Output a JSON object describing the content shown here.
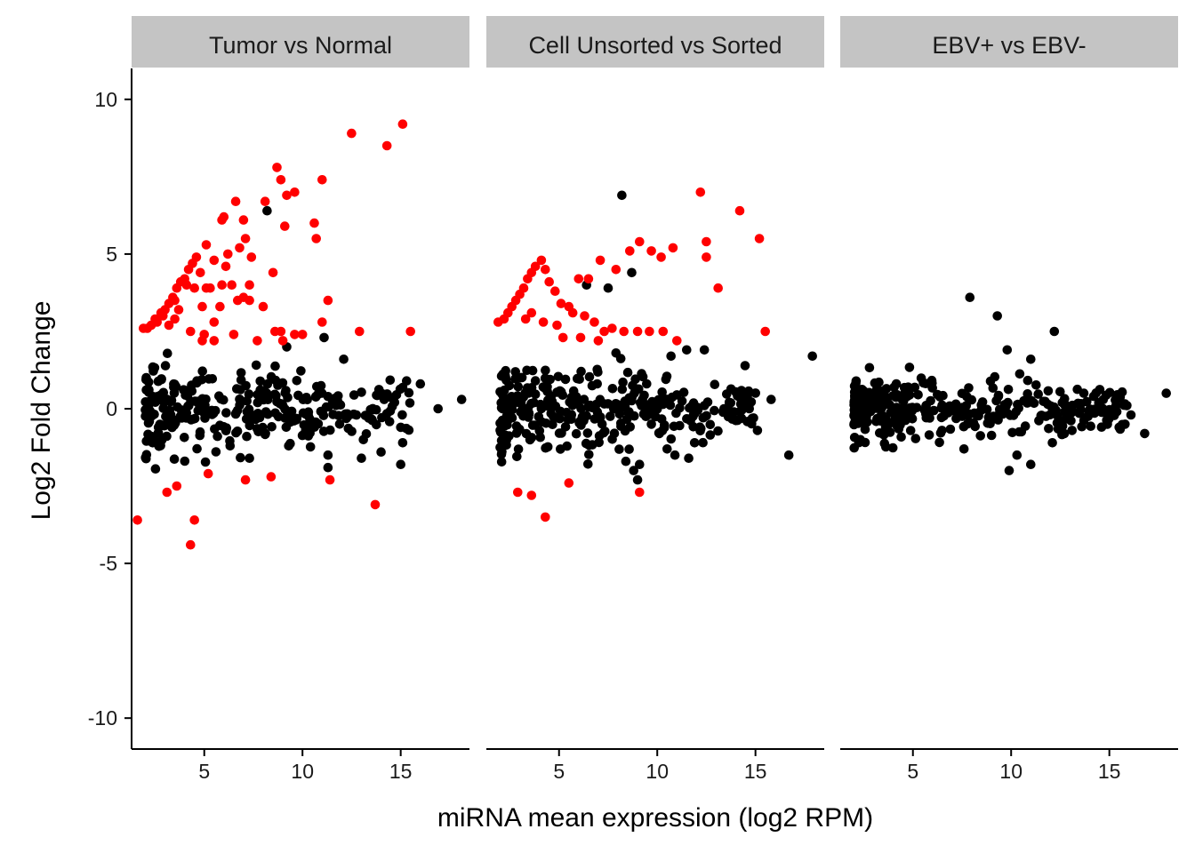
{
  "chart_data": {
    "type": "scatter",
    "xlabel": "miRNA mean expression (log2 RPM)",
    "ylabel": "Log2 Fold Change",
    "xlim": [
      1.3,
      18.5
    ],
    "ylim": [
      -11,
      11
    ],
    "xticks": [
      5,
      10,
      15
    ],
    "yticks": [
      10,
      5,
      0,
      -5,
      -10
    ],
    "x_tick_labels": [
      "5",
      "10",
      "15"
    ],
    "y_tick_labels": [
      "10",
      "5",
      "0",
      "-5",
      "-10"
    ],
    "grid": false,
    "legend": "none",
    "colors": {
      "significant": "#ff0000",
      "not_significant": "#000000",
      "strip_background": "#c4c4c4"
    },
    "panels": [
      {
        "title": "Tumor vs Normal",
        "significant_points": [
          [
            1.9,
            2.6
          ],
          [
            2.1,
            2.6
          ],
          [
            2.3,
            2.7
          ],
          [
            2.5,
            2.9
          ],
          [
            2.6,
            2.8
          ],
          [
            2.8,
            3.1
          ],
          [
            2.9,
            3.0
          ],
          [
            3.0,
            3.2
          ],
          [
            3.2,
            3.4
          ],
          [
            3.4,
            3.6
          ],
          [
            3.5,
            3.5
          ],
          [
            3.6,
            3.9
          ],
          [
            3.8,
            4.1
          ],
          [
            4.0,
            4.2
          ],
          [
            4.1,
            4.0
          ],
          [
            4.2,
            4.5
          ],
          [
            4.4,
            4.7
          ],
          [
            4.6,
            4.9
          ],
          [
            4.8,
            4.4
          ],
          [
            5.1,
            5.3
          ],
          [
            5.3,
            3.9
          ],
          [
            5.5,
            4.8
          ],
          [
            5.9,
            6.1
          ],
          [
            6.0,
            6.2
          ],
          [
            6.2,
            5.0
          ],
          [
            6.6,
            6.7
          ],
          [
            6.8,
            5.2
          ],
          [
            7.0,
            6.1
          ],
          [
            7.1,
            5.5
          ],
          [
            7.4,
            4.9
          ],
          [
            8.1,
            6.7
          ],
          [
            8.7,
            7.8
          ],
          [
            8.9,
            7.4
          ],
          [
            9.2,
            6.9
          ],
          [
            9.6,
            7.0
          ],
          [
            11.0,
            7.4
          ],
          [
            10.6,
            6.0
          ],
          [
            10.7,
            5.5
          ],
          [
            12.5,
            8.9
          ],
          [
            14.3,
            8.5
          ],
          [
            15.1,
            9.2
          ],
          [
            9.1,
            5.9
          ],
          [
            8.5,
            4.4
          ],
          [
            5.9,
            4.0
          ],
          [
            6.4,
            4.0
          ],
          [
            7.3,
            4.0
          ],
          [
            6.1,
            4.6
          ],
          [
            5.1,
            3.9
          ],
          [
            4.5,
            3.9
          ],
          [
            4.9,
            3.3
          ],
          [
            5.8,
            3.3
          ],
          [
            6.7,
            3.5
          ],
          [
            7.0,
            3.6
          ],
          [
            7.3,
            3.5
          ],
          [
            8.0,
            3.3
          ],
          [
            3.7,
            3.2
          ],
          [
            3.2,
            2.7
          ],
          [
            3.5,
            2.9
          ],
          [
            4.3,
            2.5
          ],
          [
            5.0,
            2.4
          ],
          [
            5.5,
            2.8
          ],
          [
            6.5,
            2.4
          ],
          [
            7.7,
            2.2
          ],
          [
            8.6,
            2.5
          ],
          [
            8.9,
            2.5
          ],
          [
            9.6,
            2.4
          ],
          [
            9.0,
            2.2
          ],
          [
            10.0,
            2.4
          ],
          [
            11.0,
            2.8
          ],
          [
            11.3,
            3.5
          ],
          [
            12.9,
            2.5
          ],
          [
            15.5,
            2.5
          ],
          [
            5.5,
            2.2
          ],
          [
            4.9,
            2.2
          ],
          [
            1.6,
            -3.6
          ],
          [
            3.1,
            -2.7
          ],
          [
            3.6,
            -2.5
          ],
          [
            4.3,
            -4.4
          ],
          [
            4.5,
            -3.6
          ],
          [
            5.2,
            -2.1
          ],
          [
            7.1,
            -2.3
          ],
          [
            8.4,
            -2.2
          ],
          [
            11.4,
            -2.3
          ],
          [
            13.7,
            -3.1
          ]
        ],
        "other_points": [
          [
            8.2,
            6.4
          ],
          [
            9.2,
            2.0
          ],
          [
            11.1,
            2.3
          ],
          [
            12.1,
            1.6
          ],
          [
            15.3,
            0.9
          ],
          [
            16.0,
            0.8
          ],
          [
            16.9,
            0.0
          ],
          [
            18.1,
            0.3
          ],
          [
            15.0,
            -0.6
          ],
          [
            15.1,
            -1.1
          ],
          [
            15.0,
            -1.8
          ],
          [
            14.0,
            -1.4
          ],
          [
            13.1,
            -1.0
          ],
          [
            13.0,
            -1.6
          ],
          [
            11.3,
            -1.5
          ],
          [
            11.3,
            -1.9
          ],
          [
            9.3,
            -1.2
          ],
          [
            7.3,
            -1.6
          ]
        ]
      },
      {
        "title": "Cell Unsorted vs Sorted",
        "significant_points": [
          [
            1.9,
            2.8
          ],
          [
            2.2,
            2.9
          ],
          [
            2.4,
            3.1
          ],
          [
            2.6,
            3.3
          ],
          [
            2.8,
            3.5
          ],
          [
            3.0,
            3.7
          ],
          [
            3.2,
            3.9
          ],
          [
            3.4,
            4.2
          ],
          [
            3.6,
            4.4
          ],
          [
            3.8,
            4.6
          ],
          [
            4.1,
            4.8
          ],
          [
            4.3,
            4.5
          ],
          [
            4.5,
            4.1
          ],
          [
            4.8,
            3.8
          ],
          [
            5.1,
            3.4
          ],
          [
            5.5,
            3.3
          ],
          [
            6.0,
            4.2
          ],
          [
            6.5,
            4.2
          ],
          [
            7.1,
            4.8
          ],
          [
            7.9,
            4.5
          ],
          [
            8.6,
            5.1
          ],
          [
            9.1,
            5.4
          ],
          [
            9.7,
            5.1
          ],
          [
            10.2,
            4.9
          ],
          [
            10.8,
            5.2
          ],
          [
            12.2,
            7.0
          ],
          [
            12.5,
            5.4
          ],
          [
            12.5,
            4.9
          ],
          [
            13.1,
            3.9
          ],
          [
            14.2,
            6.4
          ],
          [
            15.2,
            5.5
          ],
          [
            15.5,
            2.5
          ],
          [
            3.3,
            2.9
          ],
          [
            3.6,
            3.1
          ],
          [
            4.2,
            2.8
          ],
          [
            4.9,
            2.7
          ],
          [
            5.7,
            3.1
          ],
          [
            6.3,
            3.0
          ],
          [
            6.8,
            2.8
          ],
          [
            7.3,
            2.5
          ],
          [
            7.7,
            2.6
          ],
          [
            8.3,
            2.5
          ],
          [
            9.0,
            2.5
          ],
          [
            9.6,
            2.5
          ],
          [
            10.3,
            2.5
          ],
          [
            11.0,
            2.2
          ],
          [
            5.2,
            2.3
          ],
          [
            6.1,
            2.3
          ],
          [
            7.0,
            2.2
          ],
          [
            2.9,
            -2.7
          ],
          [
            3.6,
            -2.8
          ],
          [
            4.3,
            -3.5
          ],
          [
            5.5,
            -2.4
          ],
          [
            9.1,
            -2.7
          ]
        ],
        "other_points": [
          [
            8.2,
            6.9
          ],
          [
            8.7,
            4.4
          ],
          [
            7.5,
            3.9
          ],
          [
            6.4,
            4.0
          ],
          [
            7.9,
            1.8
          ],
          [
            10.7,
            1.7
          ],
          [
            11.5,
            1.9
          ],
          [
            12.4,
            1.9
          ],
          [
            15.8,
            0.3
          ],
          [
            17.9,
            1.7
          ],
          [
            16.7,
            -1.5
          ],
          [
            15.1,
            -0.7
          ],
          [
            14.9,
            -0.3
          ],
          [
            13.9,
            -0.1
          ],
          [
            13.4,
            0.0
          ],
          [
            11.9,
            -1.1
          ],
          [
            11.6,
            -1.6
          ],
          [
            10.5,
            -1.3
          ],
          [
            10.9,
            -1.5
          ],
          [
            9.1,
            -1.8
          ],
          [
            9.0,
            -2.3
          ],
          [
            8.4,
            -1.7
          ],
          [
            8.8,
            -2.0
          ]
        ]
      },
      {
        "title": "EBV+ vs EBV-",
        "significant_points": [],
        "other_points": [
          [
            7.9,
            3.6
          ],
          [
            9.3,
            3.0
          ],
          [
            12.2,
            2.5
          ],
          [
            11.0,
            1.6
          ],
          [
            9.8,
            1.9
          ],
          [
            13.7,
            0.5
          ],
          [
            14.2,
            0.4
          ],
          [
            15.4,
            0.3
          ],
          [
            17.9,
            0.5
          ],
          [
            16.8,
            -0.8
          ],
          [
            15.5,
            -0.6
          ],
          [
            15.8,
            -0.5
          ],
          [
            16.1,
            -0.2
          ],
          [
            14.9,
            -0.5
          ],
          [
            13.1,
            -0.7
          ],
          [
            12.1,
            -1.1
          ],
          [
            10.3,
            -1.5
          ],
          [
            9.9,
            -2.0
          ],
          [
            11.0,
            -1.8
          ],
          [
            7.6,
            -1.3
          ]
        ]
      }
    ]
  }
}
